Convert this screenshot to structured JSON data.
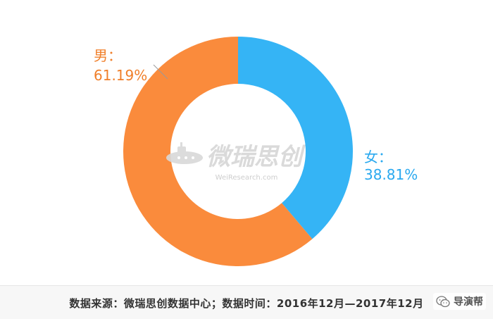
{
  "colors": {
    "male": "#fa8b3c",
    "female": "#35b4f5",
    "male_label": "#f07f2a",
    "female_label": "#2aa9ef",
    "watermark": "#dcdcdc"
  },
  "chart_data": {
    "type": "pie",
    "variant": "donut",
    "slices": [
      {
        "label": "女：",
        "value": 38.81,
        "value_text": "38.81%",
        "color": "#35b4f5"
      },
      {
        "label": "男：",
        "value": 61.19,
        "value_text": "61.19%",
        "color": "#fa8b3c"
      }
    ]
  },
  "watermark": {
    "brand": "微瑞思创",
    "url": "WeiResearch.com"
  },
  "footer": {
    "source": "数据来源：微瑞思创数据中心；数据时间：2016年12月—2017年12月",
    "badge_label": "导演帮",
    "badge_icon": "wechat-icon"
  }
}
